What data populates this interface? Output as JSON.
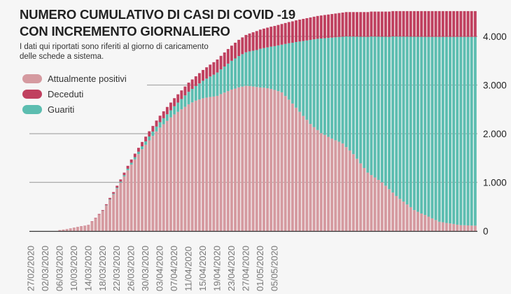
{
  "title_line1": "NUMERO CUMULATIVO DI CASI DI COVID -19",
  "title_line2": "CON INCREMENTO GIORNALIERO",
  "subtitle_line1": "I dati qui riportati sono riferiti al giorno di caricamento",
  "subtitle_line2": "delle schede a sistema.",
  "colors": {
    "positivi": "#d59aa0",
    "deceduti": "#c0405f",
    "guariti": "#5cbdb0",
    "background": "#f6f6f6"
  },
  "chart_data": {
    "type": "bar",
    "stacked": true,
    "title": "NUMERO CUMULATIVO DI CASI DI COVID -19 CON INCREMENTO GIORNALIERO",
    "x_tick_labels": [
      "27/02/2020",
      "02/03/2020",
      "06/03/2020",
      "10/03/2020",
      "14/03/2020",
      "18/03/2020",
      "22/03/2020",
      "26/03/2020",
      "30/03/2020",
      "03/04/2020",
      "07/04/2020",
      "11/04/2020",
      "15/04/2020",
      "19/04/2020",
      "23/04/2020",
      "27/04/2020",
      "01/05/2020",
      "05/05/2020"
    ],
    "y_ticks": [
      0,
      1000,
      2000,
      3000,
      4000
    ],
    "y_tick_labels": [
      "0",
      "1.000",
      "2.000",
      "3.000",
      "4.000"
    ],
    "ylim": [
      0,
      4600
    ],
    "y_axis_side": "right",
    "legend_placement": "top-left",
    "grid": true,
    "series": [
      {
        "name": "Attualmente positivi",
        "color": "#d59aa0",
        "values": [
          0,
          0,
          0,
          0,
          0,
          0,
          0,
          0,
          20,
          30,
          39,
          54,
          68,
          83,
          97,
          106,
          119,
          192,
          260,
          338,
          410,
          521,
          642,
          753,
          874,
          995,
          1122,
          1249,
          1366,
          1473,
          1580,
          1681,
          1772,
          1863,
          1954,
          2046,
          2126,
          2195,
          2265,
          2335,
          2397,
          2450,
          2502,
          2553,
          2605,
          2643,
          2680,
          2704,
          2728,
          2742,
          2756,
          2764,
          2778,
          2814,
          2845,
          2876,
          2907,
          2927,
          2953,
          2968,
          2984,
          2979,
          2969,
          2960,
          2950,
          2945,
          2935,
          2920,
          2900,
          2875,
          2850,
          2775,
          2700,
          2620,
          2535,
          2450,
          2365,
          2285,
          2200,
          2135,
          2075,
          2010,
          1975,
          1935,
          1900,
          1865,
          1835,
          1800,
          1725,
          1655,
          1580,
          1485,
          1390,
          1295,
          1200,
          1150,
          1100,
          1050,
          1000,
          930,
          860,
          790,
          720,
          660,
          605,
          545,
          490,
          430,
          395,
          360,
          330,
          295,
          260,
          225,
          190,
          180,
          165,
          155,
          145,
          130,
          120,
          118,
          115,
          112,
          110
        ]
      },
      {
        "name": "Guariti",
        "color": "#5cbdb0",
        "values": [
          0,
          0,
          0,
          0,
          0,
          0,
          0,
          0,
          0,
          0,
          0,
          0,
          0,
          0,
          0,
          0,
          0,
          0,
          0,
          0,
          5,
          8,
          11,
          14,
          17,
          20,
          26,
          32,
          38,
          44,
          50,
          60,
          70,
          80,
          90,
          100,
          111,
          123,
          134,
          145,
          167,
          189,
          211,
          234,
          256,
          278,
          300,
          330,
          360,
          390,
          420,
          450,
          480,
          508,
          536,
          564,
          592,
          620,
          643,
          667,
          690,
          713,
          737,
          760,
          795,
          815,
          840,
          870,
          900,
          940,
          980,
          1070,
          1160,
          1250,
          1350,
          1445,
          1541,
          1632,
          1728,
          1805,
          1876,
          1947,
          1988,
          2034,
          2075,
          2117,
          2153,
          2194,
          2275,
          2343,
          2417,
          2510,
          2603,
          2697,
          2790,
          2848,
          2897,
          2945,
          2993,
          3062,
          3130,
          3209,
          3278,
          3337,
          3391,
          3450,
          3504,
          3563,
          3597,
          3631,
          3660,
          3695,
          3730,
          3765,
          3800,
          3810,
          3825,
          3835,
          3845,
          3860,
          3870,
          3872,
          3875,
          3878,
          3880
        ]
      },
      {
        "name": "Deceduti",
        "color": "#c0405f",
        "values": [
          0,
          0,
          0,
          0,
          0,
          0,
          0,
          0,
          0,
          0,
          1,
          1,
          2,
          2,
          3,
          4,
          6,
          8,
          10,
          12,
          15,
          21,
          27,
          33,
          39,
          45,
          52,
          59,
          66,
          73,
          80,
          89,
          98,
          107,
          116,
          124,
          133,
          142,
          151,
          160,
          166,
          171,
          177,
          183,
          189,
          194,
          200,
          211,
          222,
          233,
          244,
          256,
          267,
          278,
          289,
          300,
          311,
          323,
          334,
          345,
          356,
          368,
          379,
          390,
          395,
          400,
          405,
          410,
          415,
          420,
          425,
          430,
          435,
          440,
          445,
          450,
          454,
          458,
          462,
          465,
          469,
          473,
          477,
          481,
          485,
          488,
          492,
          496,
          500,
          502,
          503,
          505,
          507,
          508,
          510,
          512,
          513,
          515,
          517,
          518,
          520,
          521,
          522,
          523,
          524,
          525,
          526,
          527,
          528,
          529,
          530,
          530,
          530,
          530,
          530,
          530,
          530,
          530,
          530,
          530,
          530,
          530,
          530,
          530,
          530
        ]
      }
    ],
    "legend": [
      "Attualmente positivi",
      "Deceduti",
      "Guariti"
    ]
  }
}
